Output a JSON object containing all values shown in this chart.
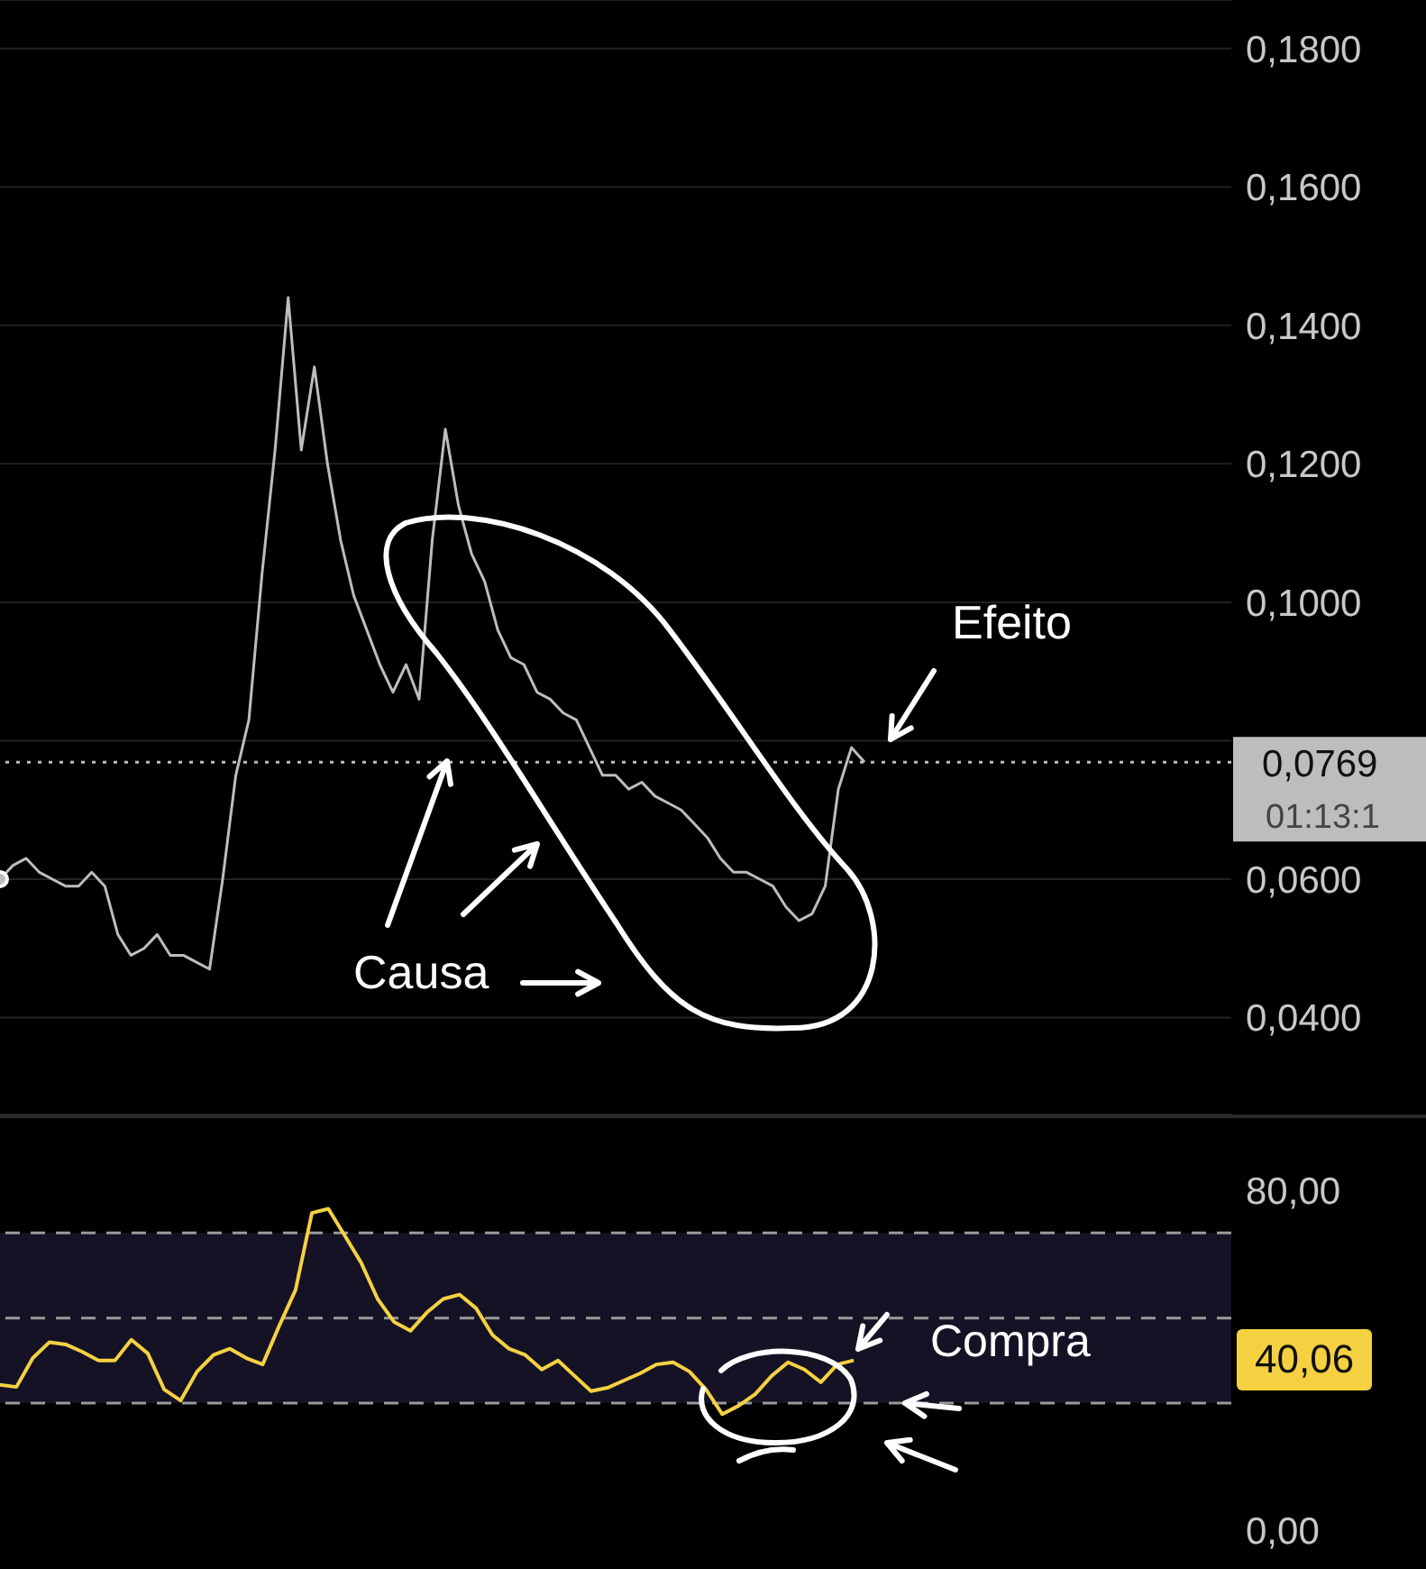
{
  "chart_data": [
    {
      "type": "line",
      "categories": [
        null,
        null,
        null,
        null,
        null,
        null,
        null,
        null,
        null,
        null,
        null,
        null,
        null,
        null,
        null,
        null,
        null,
        null,
        null,
        null,
        null,
        null,
        null,
        null,
        null,
        null,
        null,
        null,
        null,
        null,
        null,
        null,
        null,
        null,
        null,
        null,
        null,
        null,
        null,
        null,
        null,
        null,
        null,
        null,
        null,
        null,
        null,
        null,
        null,
        null,
        null,
        null,
        null,
        null,
        null,
        null,
        null,
        null,
        null,
        null,
        null,
        null,
        null,
        null,
        null,
        null,
        null,
        null,
        null,
        null,
        null,
        null,
        null,
        null,
        null,
        null,
        null,
        null,
        null,
        null,
        null,
        null,
        null,
        null,
        null,
        null,
        null,
        null,
        null,
        null,
        null,
        null,
        null,
        null,
        null
      ],
      "series": [
        {
          "color": "#bdbdbd",
          "values": [
            0.06,
            0.062,
            0.063,
            0.061,
            0.06,
            0.059,
            0.059,
            0.061,
            0.059,
            0.052,
            0.049,
            0.05,
            0.052,
            0.049,
            0.049,
            0.048,
            0.047,
            0.06,
            0.075,
            0.083,
            0.104,
            0.122,
            0.144,
            0.122,
            0.134,
            0.12,
            0.109,
            0.101,
            0.096,
            0.091,
            0.087,
            0.091,
            0.086,
            0.109,
            0.125,
            0.114,
            0.107,
            0.103,
            0.096,
            0.092,
            0.091,
            0.087,
            0.086,
            0.084,
            0.083,
            0.079,
            0.075,
            0.075,
            0.073,
            0.074,
            0.072,
            0.071,
            0.07,
            0.068,
            0.066,
            0.063,
            0.061,
            0.061,
            0.06,
            0.059,
            0.056,
            0.054,
            0.055,
            0.059,
            0.073,
            0.079,
            0.0769,
            null,
            null,
            null,
            null,
            null,
            null,
            null,
            null,
            null,
            null,
            null,
            null,
            null,
            null,
            null,
            null,
            null,
            null,
            null,
            null,
            null,
            null,
            null,
            null,
            null,
            null,
            null,
            null
          ]
        }
      ],
      "ylim": [
        0.026,
        0.187
      ],
      "yticks": [
        {
          "value": 0.04,
          "label": "0,0400"
        },
        {
          "value": 0.06,
          "label": "0,0600"
        },
        {
          "value": 0.08,
          "label": null
        },
        {
          "value": 0.1,
          "label": "0,1000"
        },
        {
          "value": 0.12,
          "label": "0,1200"
        },
        {
          "value": 0.14,
          "label": "0,1400"
        },
        {
          "value": 0.16,
          "label": "0,1600"
        },
        {
          "value": 0.18,
          "label": "0,1800"
        }
      ],
      "grid": "y",
      "tick_labels": "y",
      "ref_lines": [
        {
          "axis": "y",
          "value": 0.0769,
          "label": "0,0769",
          "color": "#bdbdbd",
          "line_style": "dotted"
        }
      ],
      "annotations": [
        "Efeito",
        "Causa",
        "01:13:1"
      ]
    },
    {
      "type": "line",
      "categories": [
        null,
        null,
        null,
        null,
        null,
        null,
        null,
        null,
        null,
        null,
        null,
        null,
        null,
        null,
        null,
        null,
        null,
        null,
        null,
        null,
        null,
        null,
        null,
        null,
        null,
        null,
        null,
        null,
        null,
        null,
        null,
        null,
        null,
        null,
        null,
        null,
        null,
        null,
        null,
        null,
        null,
        null,
        null,
        null,
        null,
        null,
        null,
        null,
        null,
        null,
        null,
        null,
        null,
        null,
        null,
        null,
        null,
        null,
        null,
        null,
        null,
        null,
        null,
        null,
        null,
        null,
        null,
        null,
        null,
        null,
        null,
        null,
        null,
        null,
        null,
        null
      ],
      "series": [
        {
          "color": "#f5d142",
          "values": [
            34.3,
            33.8,
            40.6,
            44.3,
            43.8,
            42.1,
            40,
            40,
            44.9,
            41.7,
            33.2,
            30.6,
            37.4,
            41.3,
            42.8,
            40.6,
            39.1,
            48.1,
            56.6,
            74.7,
            75.7,
            69.4,
            63,
            54.5,
            49.1,
            47,
            51.3,
            54.5,
            55.5,
            52.3,
            46,
            42.8,
            41.3,
            37.9,
            40,
            36.4,
            32.8,
            33.6,
            35.3,
            37,
            39.1,
            39.6,
            37.4,
            33.2,
            27.4,
            29.4,
            32.1,
            36.4,
            39.6,
            37.9,
            34.9,
            39.1,
            40.06,
            null,
            null,
            null,
            null,
            null,
            null,
            null,
            null,
            null,
            null,
            null,
            null,
            null,
            null,
            null,
            null,
            null,
            null,
            null,
            null,
            null,
            null,
            null
          ]
        }
      ],
      "ylim": [
        -9,
        97
      ],
      "yticks": [
        {
          "value": 0,
          "label": "0,00"
        },
        {
          "value": 80,
          "label": "80,00"
        }
      ],
      "tick_labels": "y",
      "bands": [
        {
          "axis": "y",
          "from": 30,
          "to": 70,
          "color": "#151225"
        }
      ],
      "ref_lines": [
        {
          "axis": "y",
          "value": 30,
          "color": "#9a9a9a",
          "line_style": "dashed"
        },
        {
          "axis": "y",
          "value": 50,
          "color": "#9a9a9a",
          "line_style": "dashed"
        },
        {
          "axis": "y",
          "value": 70,
          "color": "#9a9a9a",
          "line_style": "dashed"
        }
      ],
      "annotations": [
        "Compra",
        "40,06"
      ]
    }
  ]
}
